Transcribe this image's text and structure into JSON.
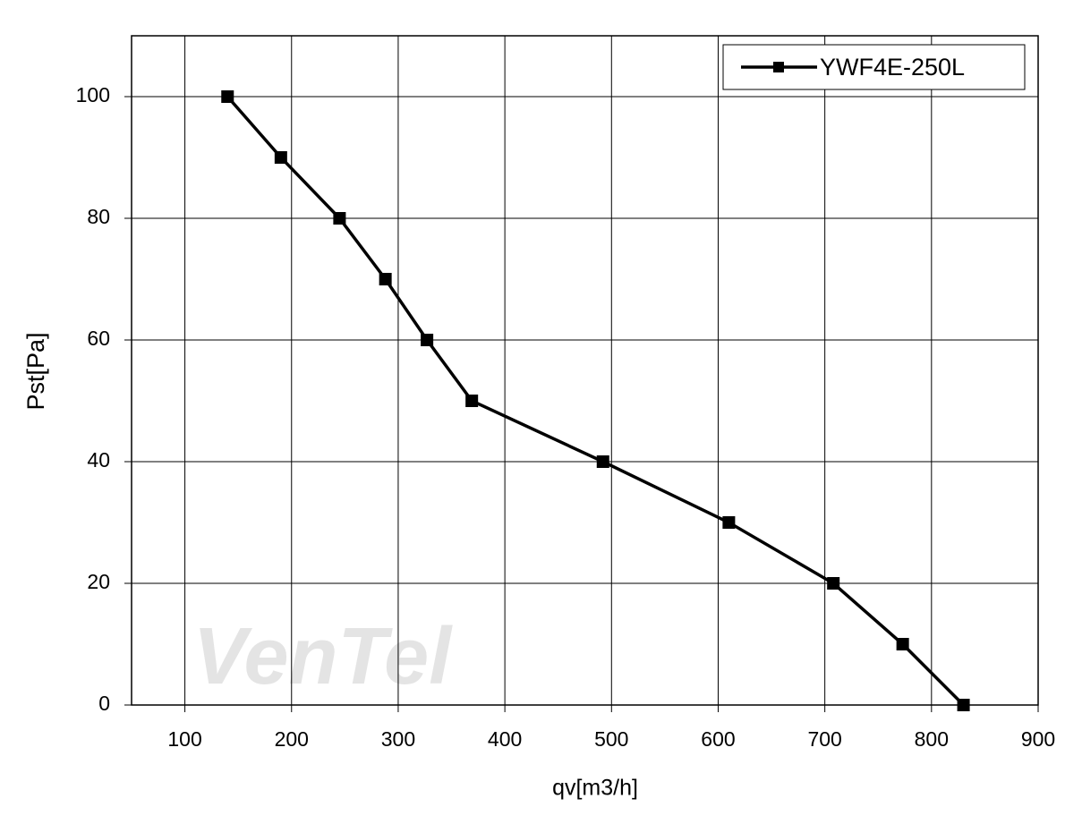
{
  "chart_data": {
    "type": "line",
    "x_label": "qv[m3/h]",
    "y_label": "Pst[Pa]",
    "watermark": "VenTel",
    "x": [
      140,
      190,
      245,
      288,
      327,
      369,
      492,
      610,
      708,
      773,
      830
    ],
    "series": [
      {
        "name": "YWF4E-250L",
        "color": "#000000",
        "values": [
          100,
          90,
          80,
          70,
          60,
          50,
          40,
          30,
          20,
          10,
          0
        ]
      }
    ],
    "xlim": [
      50,
      900
    ],
    "xticks": [
      100,
      200,
      300,
      400,
      500,
      600,
      700,
      800,
      900
    ],
    "ylim": [
      0,
      110
    ],
    "yticks": [
      0,
      20,
      40,
      60,
      80,
      100
    ],
    "grid": true,
    "legend": "top-right"
  }
}
